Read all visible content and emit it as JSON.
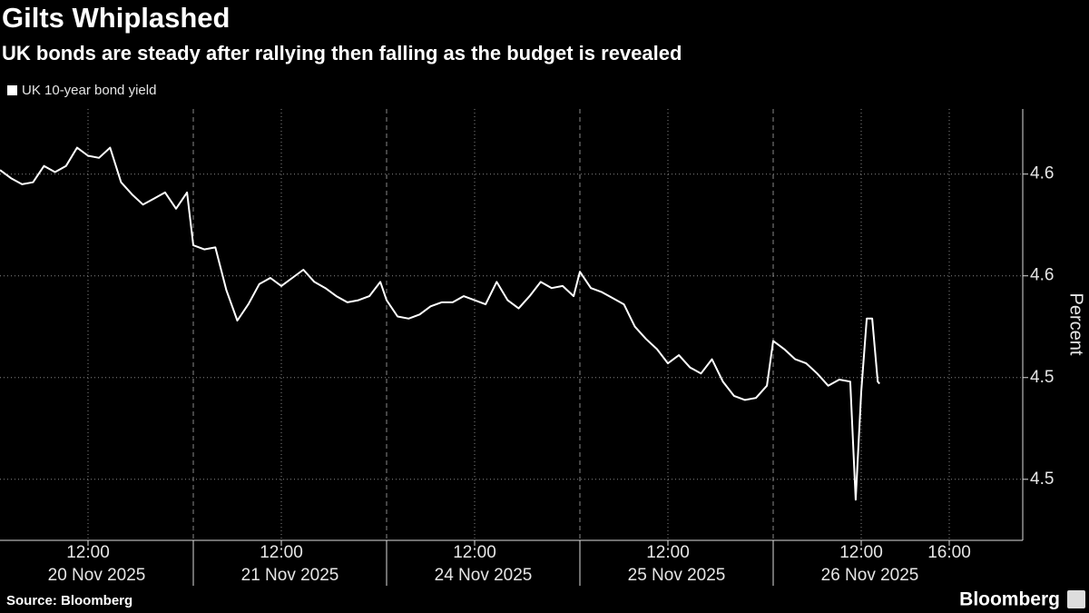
{
  "chart_data": {
    "type": "line",
    "title": "Gilts Whiplashed",
    "subtitle": "UK bonds are steady after rallying then falling as the budget is revealed",
    "y_axis_title": "Percent",
    "source": "Source: Bloomberg",
    "brand": "Bloomberg",
    "ylim": [
      4.42,
      4.632
    ],
    "yticks": [
      {
        "value": 4.6,
        "label": "4.6"
      },
      {
        "value": 4.55,
        "label": "4.6"
      },
      {
        "value": 4.5,
        "label": "4.5"
      },
      {
        "value": 4.45,
        "label": "4.5"
      }
    ],
    "days": [
      {
        "value": "2025-11-20",
        "label": "20 Nov 2025"
      },
      {
        "value": "2025-11-21",
        "label": "21 Nov 2025"
      },
      {
        "value": "2025-11-24",
        "label": "24 Nov 2025"
      },
      {
        "value": "2025-11-25",
        "label": "25 Nov 2025"
      },
      {
        "value": "2025-11-26",
        "label": "26 Nov 2025"
      }
    ],
    "xticks": [
      {
        "value": "2025-11-20 12:00",
        "label": "12:00"
      },
      {
        "value": "2025-11-21 12:00",
        "label": "12:00"
      },
      {
        "value": "2025-11-24 12:00",
        "label": "12:00"
      },
      {
        "value": "2025-11-25 12:00",
        "label": "12:00"
      },
      {
        "value": "2025-11-26 12:00",
        "label": "12:00"
      },
      {
        "value": "2025-11-26 16:00",
        "label": "16:00"
      }
    ],
    "grid": true,
    "x": [
      "2025-11-20 08:00",
      "2025-11-20 08:30",
      "2025-11-20 09:00",
      "2025-11-20 09:30",
      "2025-11-20 10:00",
      "2025-11-20 10:30",
      "2025-11-20 11:00",
      "2025-11-20 11:30",
      "2025-11-20 12:00",
      "2025-11-20 12:30",
      "2025-11-20 13:00",
      "2025-11-20 13:30",
      "2025-11-20 14:00",
      "2025-11-20 14:30",
      "2025-11-20 15:00",
      "2025-11-20 15:30",
      "2025-11-20 16:00",
      "2025-11-20 16:30",
      "2025-11-21 08:00",
      "2025-11-21 08:30",
      "2025-11-21 09:00",
      "2025-11-21 09:30",
      "2025-11-21 10:00",
      "2025-11-21 10:30",
      "2025-11-21 11:00",
      "2025-11-21 11:30",
      "2025-11-21 12:00",
      "2025-11-21 12:30",
      "2025-11-21 13:00",
      "2025-11-21 13:30",
      "2025-11-21 14:00",
      "2025-11-21 14:30",
      "2025-11-21 15:00",
      "2025-11-21 15:30",
      "2025-11-21 16:00",
      "2025-11-21 16:30",
      "2025-11-24 08:00",
      "2025-11-24 08:30",
      "2025-11-24 09:00",
      "2025-11-24 09:30",
      "2025-11-24 10:00",
      "2025-11-24 10:30",
      "2025-11-24 11:00",
      "2025-11-24 11:30",
      "2025-11-24 12:00",
      "2025-11-24 12:30",
      "2025-11-24 13:00",
      "2025-11-24 13:30",
      "2025-11-24 14:00",
      "2025-11-24 14:30",
      "2025-11-24 15:00",
      "2025-11-24 15:30",
      "2025-11-24 16:00",
      "2025-11-24 16:30",
      "2025-11-25 08:00",
      "2025-11-25 08:30",
      "2025-11-25 09:00",
      "2025-11-25 09:30",
      "2025-11-25 10:00",
      "2025-11-25 10:30",
      "2025-11-25 11:00",
      "2025-11-25 11:30",
      "2025-11-25 12:00",
      "2025-11-25 12:30",
      "2025-11-25 13:00",
      "2025-11-25 13:30",
      "2025-11-25 14:00",
      "2025-11-25 14:30",
      "2025-11-25 15:00",
      "2025-11-25 15:30",
      "2025-11-25 16:00",
      "2025-11-25 16:30",
      "2025-11-26 08:00",
      "2025-11-26 08:30",
      "2025-11-26 09:00",
      "2025-11-26 09:30",
      "2025-11-26 10:00",
      "2025-11-26 10:30",
      "2025-11-26 11:00",
      "2025-11-26 11:30",
      "2025-11-26 11:45",
      "2025-11-26 12:00",
      "2025-11-26 12:15",
      "2025-11-26 12:30",
      "2025-11-26 12:45",
      "2025-11-26 12:50"
    ],
    "series": [
      {
        "name": "UK 10-year bond yield",
        "color": "#ffffff",
        "values": [
          4.602,
          4.598,
          4.595,
          4.596,
          4.604,
          4.601,
          4.604,
          4.613,
          4.609,
          4.608,
          4.613,
          4.596,
          4.59,
          4.585,
          4.588,
          4.591,
          4.583,
          4.591,
          4.565,
          4.563,
          4.564,
          4.543,
          4.528,
          4.536,
          4.546,
          4.549,
          4.545,
          4.549,
          4.553,
          4.547,
          4.544,
          4.54,
          4.537,
          4.538,
          4.54,
          4.547,
          4.538,
          4.53,
          4.529,
          4.531,
          4.535,
          4.537,
          4.537,
          4.54,
          4.538,
          4.536,
          4.547,
          4.538,
          4.534,
          4.54,
          4.547,
          4.544,
          4.545,
          4.54,
          4.552,
          4.544,
          4.542,
          4.539,
          4.536,
          4.525,
          4.519,
          4.514,
          4.507,
          4.511,
          4.505,
          4.502,
          4.509,
          4.498,
          4.491,
          4.489,
          4.49,
          4.496,
          4.518,
          4.514,
          4.509,
          4.507,
          4.502,
          4.496,
          4.499,
          4.498,
          4.44,
          4.493,
          4.529,
          4.529,
          4.498,
          4.497
        ]
      }
    ]
  }
}
